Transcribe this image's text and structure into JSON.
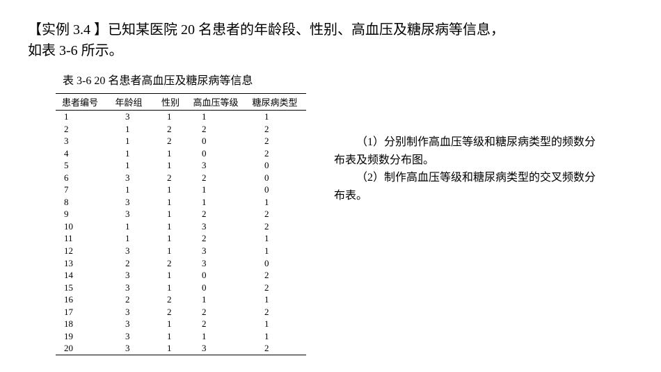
{
  "title_line1": "【实例 3.4 】已知某医院 20 名患者的年龄段、性别、高血压及糖尿病等信息，",
  "title_line2": "如表 3-6 所示。",
  "table_caption": "表 3-6 20 名患者高血压及糖尿病等信息",
  "columns": [
    "患者编号",
    "年龄组",
    "性别",
    "高血压等级",
    "糖尿病类型"
  ],
  "rows": [
    [
      "1",
      "3",
      "1",
      "1",
      "1"
    ],
    [
      "2",
      "1",
      "2",
      "2",
      "2"
    ],
    [
      "3",
      "1",
      "2",
      "0",
      "2"
    ],
    [
      "4",
      "1",
      "1",
      "0",
      "2"
    ],
    [
      "5",
      "1",
      "1",
      "3",
      "0"
    ],
    [
      "6",
      "3",
      "2",
      "2",
      "0"
    ],
    [
      "7",
      "1",
      "1",
      "1",
      "0"
    ],
    [
      "8",
      "3",
      "1",
      "1",
      "1"
    ],
    [
      "9",
      "3",
      "1",
      "2",
      "2"
    ],
    [
      "10",
      "1",
      "1",
      "3",
      "2"
    ],
    [
      "11",
      "1",
      "1",
      "2",
      "1"
    ],
    [
      "12",
      "3",
      "1",
      "3",
      "1"
    ],
    [
      "13",
      "2",
      "2",
      "3",
      "0"
    ],
    [
      "14",
      "3",
      "1",
      "0",
      "2"
    ],
    [
      "15",
      "3",
      "1",
      "0",
      "2"
    ],
    [
      "16",
      "2",
      "2",
      "1",
      "1"
    ],
    [
      "17",
      "3",
      "2",
      "2",
      "2"
    ],
    [
      "18",
      "3",
      "1",
      "2",
      "1"
    ],
    [
      "19",
      "3",
      "1",
      "1",
      "1"
    ],
    [
      "20",
      "3",
      "1",
      "3",
      "2"
    ]
  ],
  "q1_a": "（1）分别制作高血压等级和糖尿病类型的频数分",
  "q1_b": "布表及频数分布图。",
  "q2_a": "（2）制作高血压等级和糖尿病类型的交叉频数分",
  "q2_b": "布表。"
}
